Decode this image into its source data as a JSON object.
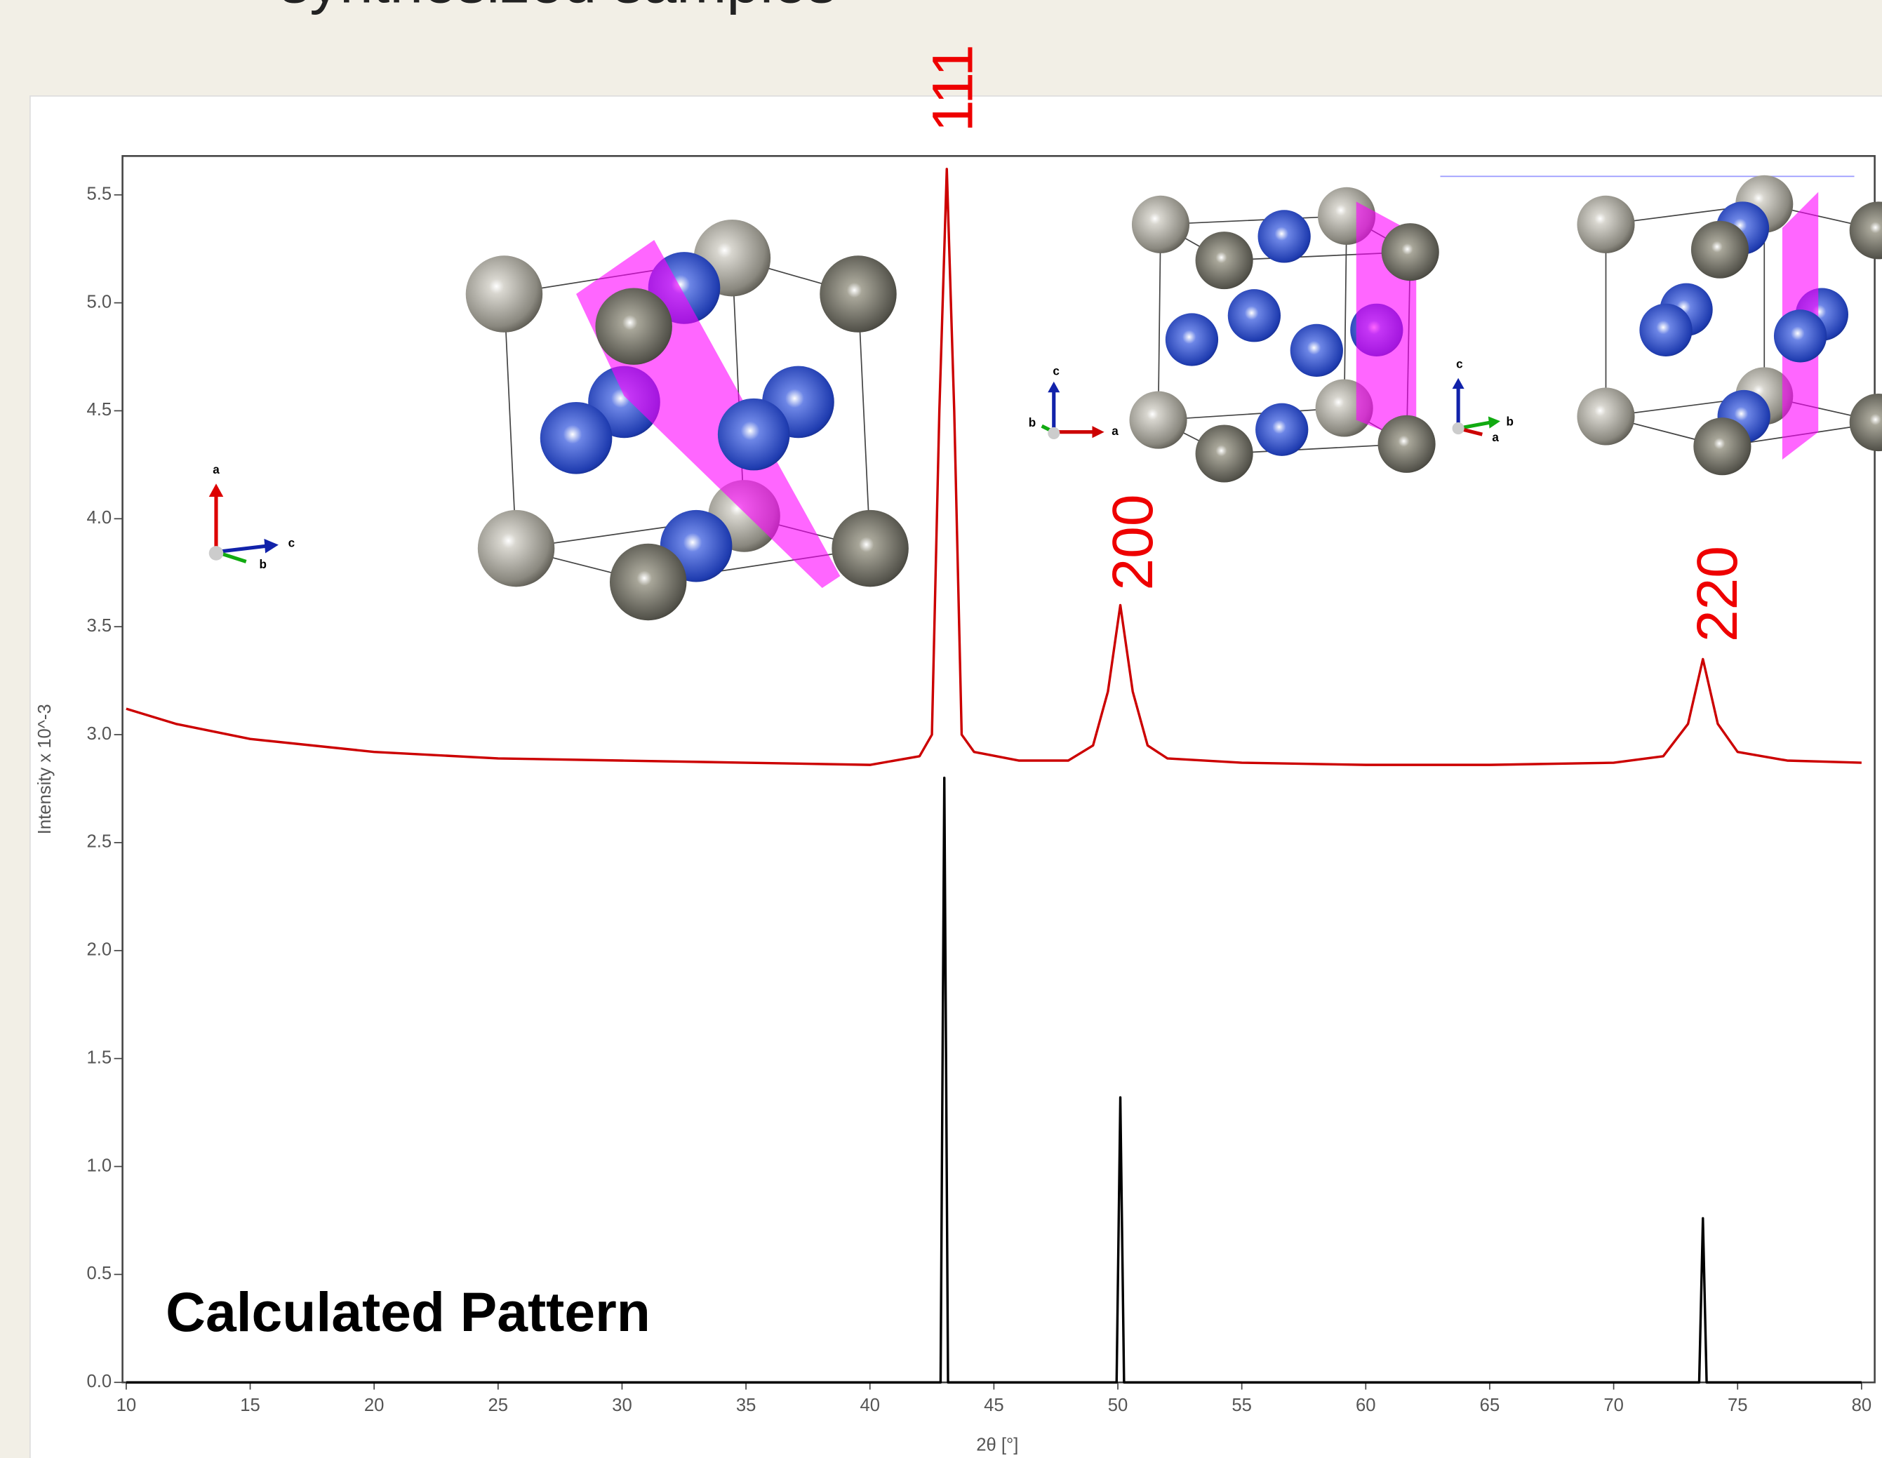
{
  "slide_title": "synthesized samples",
  "chart_data": {
    "type": "line",
    "x_label": "2θ [°]",
    "y_label": "Intensity x 10^-3",
    "xlim": [
      9.85,
      80.53
    ],
    "ylim": [
      0,
      5.68
    ],
    "xticks": [
      10,
      15,
      20,
      25,
      30,
      35,
      40,
      45,
      50,
      55,
      60,
      65,
      70,
      75,
      80
    ],
    "yticks": [
      {
        "value": 0,
        "label": "0.0"
      },
      0.5,
      {
        "value": 1,
        "label": "1.0"
      },
      1.5,
      {
        "value": 2,
        "label": "2.0"
      },
      2.5,
      {
        "value": 3,
        "label": "3.0"
      },
      3.5,
      {
        "value": 4,
        "label": "4.0"
      },
      4.5,
      {
        "value": 5,
        "label": "5.0"
      },
      5.5
    ],
    "grid": false,
    "series": [
      {
        "color": "#cc0000",
        "x": [
          10,
          12,
          15,
          20,
          25,
          30,
          35,
          40,
          42,
          42.5,
          42.8,
          43.1,
          43.4,
          43.7,
          44.2,
          46,
          48,
          49,
          49.6,
          50.1,
          50.6,
          51.2,
          52,
          55,
          60,
          65,
          70,
          72,
          73,
          73.6,
          74.2,
          75,
          77,
          80
        ],
        "values": [
          3.12,
          3.05,
          2.98,
          2.92,
          2.89,
          2.88,
          2.87,
          2.86,
          2.9,
          3.0,
          4.5,
          5.62,
          4.5,
          3.0,
          2.92,
          2.88,
          2.88,
          2.95,
          3.2,
          3.6,
          3.2,
          2.95,
          2.89,
          2.87,
          2.86,
          2.86,
          2.87,
          2.9,
          3.05,
          3.35,
          3.05,
          2.92,
          2.88,
          2.87
        ]
      },
      {
        "name": "Calculated Pattern",
        "color": "#000000",
        "x": [
          10,
          42.85,
          43.0,
          43.15,
          49.95,
          50.1,
          50.25,
          73.45,
          73.6,
          73.75,
          80
        ],
        "values": [
          0,
          0,
          2.8,
          0,
          0,
          1.32,
          0,
          0,
          0.76,
          0,
          0
        ]
      }
    ],
    "peak_labels": [
      "111",
      "200",
      "220"
    ],
    "crystal_axis_labels": [
      [
        "a",
        "b",
        "c"
      ],
      [
        "c",
        "b",
        "a"
      ],
      [
        "c",
        "b",
        "a"
      ]
    ]
  }
}
